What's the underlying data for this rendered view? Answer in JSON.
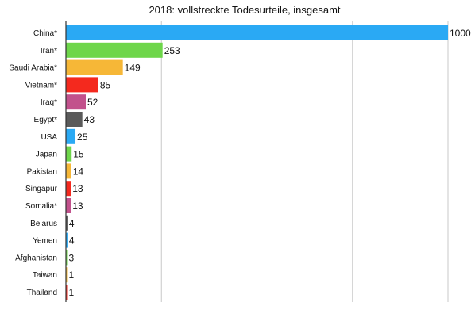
{
  "chart_data": {
    "type": "bar",
    "orientation": "horizontal",
    "title": "2018: vollstreckte Todesurteile, insgesamt",
    "xlabel": "",
    "ylabel": "",
    "xlim": [
      0,
      1000
    ],
    "grid": true,
    "legend": "none",
    "categories": [
      "China*",
      "Iran*",
      "Saudi Arabia*",
      "Vietnam*",
      "Iraq*",
      "Egypt*",
      "USA",
      "Japan",
      "Pakistan",
      "Singapur",
      "Somalia*",
      "Belarus",
      "Yemen",
      "Afghanistan",
      "Taiwan",
      "Thailand"
    ],
    "values": [
      1000,
      253,
      149,
      85,
      52,
      43,
      25,
      15,
      14,
      13,
      13,
      4,
      4,
      3,
      1,
      1
    ],
    "colors": [
      "#2aa9f4",
      "#6ed64a",
      "#f6b737",
      "#f4291e",
      "#c2518c",
      "#5a5a5a",
      "#2aa9f4",
      "#6ed64a",
      "#f6b737",
      "#f4291e",
      "#c2518c",
      "#5a5a5a",
      "#2aa9f4",
      "#6ed64a",
      "#f6b737",
      "#f4291e"
    ]
  }
}
